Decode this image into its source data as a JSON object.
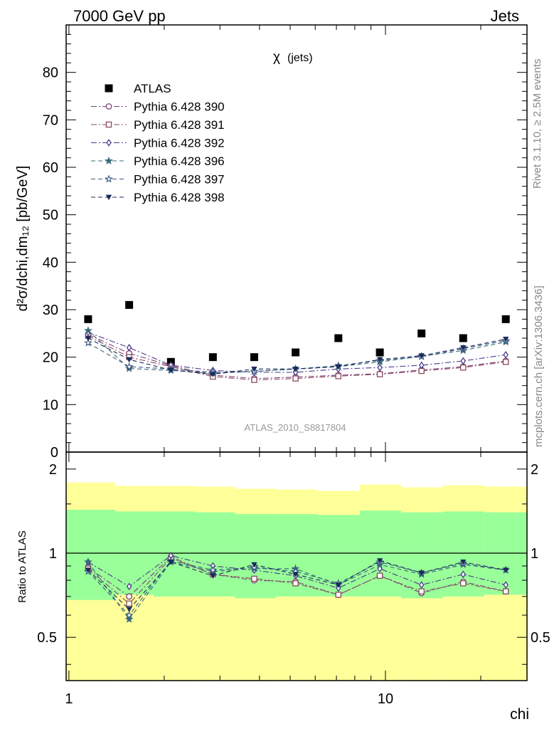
{
  "header": {
    "left": "7000 GeV pp",
    "right": "Jets"
  },
  "side_labels": {
    "rivet": "Rivet 3.1.10, ≥ 2.5M events",
    "mcplots": "mcplots.cern.ch [arXiv:1306.3436]"
  },
  "watermark": "ATLAS_2010_S8817804",
  "chart_data": [
    {
      "type": "scatter",
      "title": "χ",
      "title_suffix": "(jets)",
      "ylabel": "d²σ/dchi,dm₁₂ [pb/GeV]",
      "ylim": [
        0,
        90
      ],
      "yticks": [
        0,
        10,
        20,
        30,
        40,
        50,
        60,
        70,
        80
      ],
      "xscale": "log",
      "xlim": [
        0.98,
        28
      ],
      "legend_position": "top-left",
      "x": [
        1.15,
        1.55,
        2.1,
        2.85,
        3.85,
        5.2,
        7.1,
        9.6,
        13,
        17.6,
        24
      ],
      "series": [
        {
          "name": "ATLAS",
          "color": "#000000",
          "marker": "square-filled",
          "values": [
            28,
            31,
            19,
            20,
            20,
            21,
            24,
            21,
            25,
            24,
            28
          ]
        },
        {
          "name": "Pythia 6.428 390",
          "color": "#7b3f7b",
          "marker": "circle-open",
          "dash": "dashdot",
          "values": [
            24.8,
            20.8,
            18.2,
            16.2,
            15.5,
            15.8,
            16.2,
            16.5,
            17.3,
            18.0,
            19.2
          ]
        },
        {
          "name": "Pythia 6.428 391",
          "color": "#8b4a5e",
          "marker": "square-open",
          "dash": "dashdot",
          "values": [
            24.5,
            20.0,
            18.0,
            15.9,
            15.2,
            15.5,
            16.0,
            16.4,
            17.1,
            17.8,
            19.0
          ]
        },
        {
          "name": "Pythia 6.428 392",
          "color": "#4a3a8a",
          "marker": "diamond-open",
          "dash": "dashdot",
          "values": [
            25.2,
            22.0,
            18.3,
            17.2,
            16.8,
            16.8,
            17.5,
            17.8,
            18.3,
            19.2,
            20.5
          ]
        },
        {
          "name": "Pythia 6.428 396",
          "color": "#3a6a7a",
          "marker": "star-filled",
          "dash": "dashed",
          "values": [
            25.6,
            17.6,
            17.2,
            16.6,
            17.0,
            17.5,
            18.0,
            19.0,
            20.2,
            21.4,
            23.2
          ]
        },
        {
          "name": "Pythia 6.428 397",
          "color": "#3a5a80",
          "marker": "star-open",
          "dash": "dashed",
          "values": [
            23.0,
            18.0,
            17.5,
            16.8,
            17.0,
            17.5,
            18.2,
            19.3,
            20.1,
            21.8,
            23.5
          ]
        },
        {
          "name": "Pythia 6.428 398",
          "color": "#1a2a5a",
          "marker": "triangle-down-filled",
          "dash": "dashed",
          "values": [
            24.0,
            19.5,
            17.3,
            16.4,
            17.5,
            17.5,
            18.0,
            19.5,
            20.3,
            22.0,
            23.8
          ]
        }
      ]
    },
    {
      "type": "scatter",
      "ylabel": "Ratio to ATLAS",
      "xlabel": "chi",
      "xscale": "log",
      "xlim": [
        0.98,
        28
      ],
      "ylim": [
        0.35,
        2.3
      ],
      "yticks": [
        0.5,
        1,
        2
      ],
      "xticks": [
        1,
        10
      ],
      "reference_line": 1,
      "band_edges": [
        0.98,
        1.4,
        1.85,
        2.5,
        3.35,
        4.5,
        6.1,
        8.3,
        11.2,
        15.2,
        20.5,
        28
      ],
      "band_colors": {
        "outer": "#ffff99",
        "inner": "#99ff99"
      },
      "inner_band": {
        "low": [
          0.68,
          0.71,
          0.7,
          0.7,
          0.69,
          0.7,
          0.7,
          0.7,
          0.69,
          0.7,
          0.71
        ],
        "high": [
          1.43,
          1.41,
          1.41,
          1.4,
          1.38,
          1.38,
          1.37,
          1.42,
          1.4,
          1.41,
          1.4
        ]
      },
      "outer_band": {
        "low": [
          0.35,
          0.35,
          0.35,
          0.35,
          0.35,
          0.35,
          0.35,
          0.35,
          0.35,
          0.35,
          0.35
        ],
        "high": [
          1.79,
          1.74,
          1.74,
          1.73,
          1.7,
          1.69,
          1.67,
          1.76,
          1.72,
          1.75,
          1.73
        ]
      },
      "x": [
        1.15,
        1.55,
        2.1,
        2.85,
        3.85,
        5.2,
        7.1,
        9.6,
        13,
        17.6,
        24
      ],
      "series": [
        {
          "name": "Pythia 6.428 390",
          "values": [
            0.89,
            0.7,
            0.97,
            0.84,
            0.8,
            0.79,
            0.71,
            0.83,
            0.72,
            0.79,
            0.73
          ]
        },
        {
          "name": "Pythia 6.428 391",
          "values": [
            0.88,
            0.66,
            0.96,
            0.84,
            0.81,
            0.78,
            0.71,
            0.83,
            0.73,
            0.78,
            0.73
          ]
        },
        {
          "name": "Pythia 6.428 392",
          "values": [
            0.93,
            0.76,
            0.98,
            0.9,
            0.87,
            0.83,
            0.75,
            0.88,
            0.77,
            0.84,
            0.77
          ]
        },
        {
          "name": "Pythia 6.428 396",
          "values": [
            0.93,
            0.58,
            0.93,
            0.86,
            0.88,
            0.88,
            0.77,
            0.91,
            0.84,
            0.91,
            0.87
          ]
        },
        {
          "name": "Pythia 6.428 397",
          "values": [
            0.86,
            0.6,
            0.94,
            0.87,
            0.89,
            0.86,
            0.78,
            0.93,
            0.85,
            0.92,
            0.87
          ]
        },
        {
          "name": "Pythia 6.428 398",
          "values": [
            0.87,
            0.63,
            0.93,
            0.83,
            0.91,
            0.84,
            0.77,
            0.94,
            0.85,
            0.93,
            0.87
          ]
        }
      ]
    }
  ]
}
